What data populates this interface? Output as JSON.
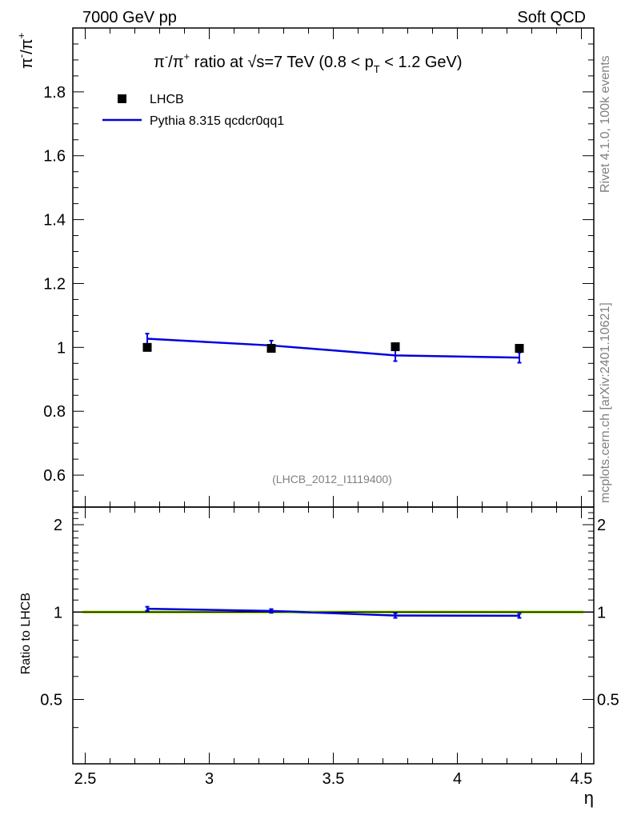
{
  "header": {
    "energy_label": "7000 GeV pp",
    "category_label": "Soft QCD"
  },
  "side_labels": {
    "rivet": "Rivet 4.1.0,  100k events",
    "mcplots": "mcplots.cern.ch [arXiv:2401.10621]"
  },
  "colors": {
    "mc_line": "#0000dd",
    "data_marker": "#000000",
    "band_fill": "#ccff66"
  },
  "chart_data": [
    {
      "type": "scatter",
      "panel": "main",
      "title": "π⁻/π⁺ ratio at √s=7 TeV (0.8 < pT < 1.2 GeV)",
      "title_parts": {
        "prefix": "π",
        "minus": "-",
        "slash": "/π",
        "plus": "+",
        "ratio_at": " ratio at ",
        "sqrt": "√",
        "s_eq": "s=7 TeV (0.8 < p",
        "sub_T": "T",
        "suffix": " < 1.2 GeV)"
      },
      "ylabel_parts": {
        "pi1": "π",
        "minus": "-",
        "slash": "/π",
        "plus": "+"
      },
      "xlabel": "η",
      "xlim": [
        2.45,
        4.55
      ],
      "ylim": [
        0.5,
        2.0
      ],
      "yticks": [
        0.6,
        0.8,
        1.0,
        1.2,
        1.4,
        1.6,
        1.8
      ],
      "ytick_labels": [
        "0.6",
        "0.8",
        "1",
        "1.2",
        "1.4",
        "1.6",
        "1.8"
      ],
      "legend_position": "top-left",
      "watermark": "(LHCB_2012_I1119400)",
      "series": [
        {
          "name": "LHCB",
          "kind": "markers",
          "x": [
            2.75,
            3.25,
            3.75,
            4.25
          ],
          "y": [
            1.0,
            0.997,
            1.002,
            0.997
          ]
        },
        {
          "name": "Pythia 8.315 qcdcr0qq1",
          "kind": "line",
          "x": [
            2.75,
            3.25,
            3.75,
            4.25
          ],
          "y": [
            1.027,
            1.006,
            0.975,
            0.968
          ],
          "yerr": [
            0.016,
            0.015,
            0.018,
            0.016
          ]
        }
      ]
    },
    {
      "type": "line",
      "panel": "ratio",
      "ylabel": "Ratio to LHCB",
      "xlabel": "η",
      "xlim": [
        2.45,
        4.55
      ],
      "ylim": [
        0.3,
        2.3
      ],
      "xticks": [
        2.5,
        3.0,
        3.5,
        4.0,
        4.5
      ],
      "xtick_labels": [
        "2.5",
        "3",
        "3.5",
        "4",
        "4.5"
      ],
      "yticks": [
        0.5,
        1.0,
        2.0
      ],
      "ytick_labels": [
        "0.5",
        "1",
        "2"
      ],
      "band": [
        0.985,
        1.015
      ],
      "series": [
        {
          "name": "Pythia 8.315 qcdcr0qq1 / LHCB",
          "x": [
            2.75,
            3.25,
            3.75,
            4.25
          ],
          "y": [
            1.027,
            1.009,
            0.973,
            0.971
          ],
          "yerr": [
            0.016,
            0.015,
            0.018,
            0.016
          ]
        }
      ]
    }
  ]
}
